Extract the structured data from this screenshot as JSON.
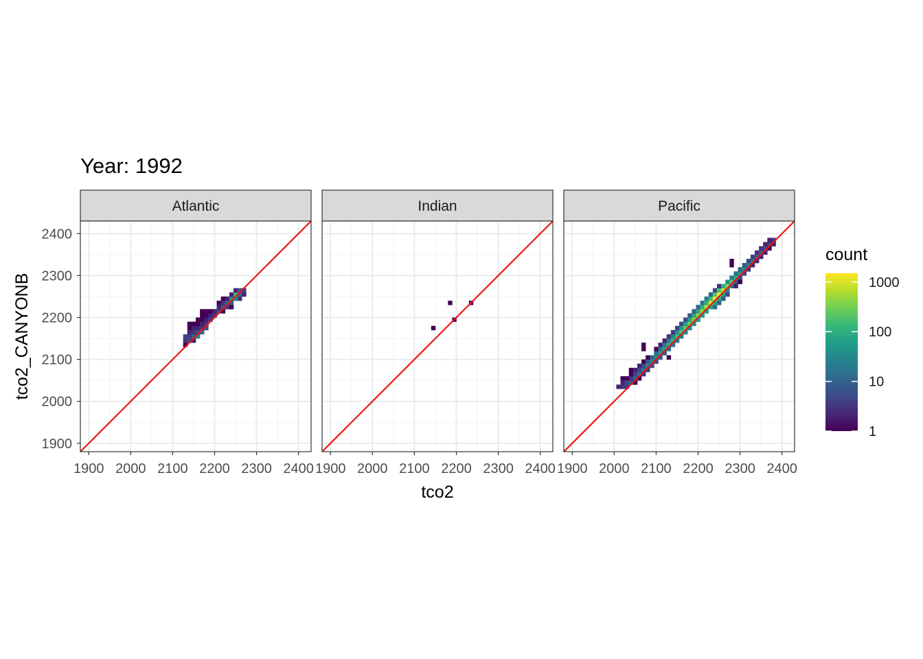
{
  "chart_data": {
    "type": "heatmap",
    "title": "Year: 1992",
    "xlabel": "tco2",
    "ylabel": "tco2_CANYONB",
    "xlim": [
      1880,
      2430
    ],
    "ylim": [
      1880,
      2430
    ],
    "x_ticks": [
      "1900",
      "2000",
      "2100",
      "2200",
      "2300",
      "2400"
    ],
    "y_ticks": [
      "1900",
      "2000",
      "2100",
      "2200",
      "2300",
      "2400"
    ],
    "bin_width": 10,
    "grid": true,
    "reference_line": {
      "slope": 1,
      "intercept": 0,
      "color": "#ee1111"
    },
    "legend": {
      "title": "count",
      "scale": "log10",
      "labels": [
        "1000",
        "100",
        "10",
        "1"
      ],
      "range": [
        1,
        1500
      ],
      "placement": "right"
    },
    "panels": [
      {
        "name": "Atlantic",
        "cells": [
          [
            2130,
            2135,
            1
          ],
          [
            2130,
            2145,
            3
          ],
          [
            2130,
            2155,
            5
          ],
          [
            2140,
            2145,
            6
          ],
          [
            2140,
            2155,
            4
          ],
          [
            2140,
            2165,
            2
          ],
          [
            2140,
            2175,
            1
          ],
          [
            2140,
            2185,
            1
          ],
          [
            2150,
            2145,
            2
          ],
          [
            2150,
            2155,
            10
          ],
          [
            2150,
            2165,
            3
          ],
          [
            2150,
            2175,
            2
          ],
          [
            2150,
            2185,
            1
          ],
          [
            2160,
            2155,
            30
          ],
          [
            2160,
            2165,
            5
          ],
          [
            2160,
            2175,
            2
          ],
          [
            2160,
            2185,
            1
          ],
          [
            2160,
            2195,
            1
          ],
          [
            2170,
            2165,
            15
          ],
          [
            2170,
            2175,
            3
          ],
          [
            2170,
            2185,
            2
          ],
          [
            2170,
            2195,
            1
          ],
          [
            2170,
            2205,
            1
          ],
          [
            2170,
            2215,
            1
          ],
          [
            2180,
            2175,
            6
          ],
          [
            2180,
            2185,
            3
          ],
          [
            2180,
            2195,
            2
          ],
          [
            2180,
            2205,
            1
          ],
          [
            2180,
            2215,
            1
          ],
          [
            2190,
            2195,
            4
          ],
          [
            2190,
            2205,
            2
          ],
          [
            2190,
            2215,
            1
          ],
          [
            2200,
            2205,
            3
          ],
          [
            2200,
            2215,
            2
          ],
          [
            2210,
            2215,
            5
          ],
          [
            2210,
            2225,
            2
          ],
          [
            2210,
            2235,
            1
          ],
          [
            2220,
            2225,
            8
          ],
          [
            2220,
            2235,
            3
          ],
          [
            2220,
            2245,
            1
          ],
          [
            2220,
            2215,
            1
          ],
          [
            2230,
            2235,
            12
          ],
          [
            2230,
            2225,
            3
          ],
          [
            2230,
            2245,
            2
          ],
          [
            2240,
            2245,
            40
          ],
          [
            2240,
            2235,
            8
          ],
          [
            2240,
            2255,
            2
          ],
          [
            2240,
            2225,
            1
          ],
          [
            2250,
            2255,
            150
          ],
          [
            2250,
            2245,
            30
          ],
          [
            2250,
            2265,
            2
          ],
          [
            2260,
            2265,
            8
          ],
          [
            2260,
            2255,
            12
          ],
          [
            2260,
            2245,
            3
          ],
          [
            2270,
            2265,
            4
          ],
          [
            2270,
            2255,
            2
          ]
        ]
      },
      {
        "name": "Indian",
        "cells": [
          [
            2145,
            2175,
            1
          ],
          [
            2185,
            2235,
            1
          ],
          [
            2195,
            2195,
            1
          ],
          [
            2235,
            2235,
            1
          ]
        ]
      },
      {
        "name": "Pacific",
        "cells": [
          [
            2010,
            2035,
            2
          ],
          [
            2020,
            2035,
            3
          ],
          [
            2020,
            2045,
            2
          ],
          [
            2020,
            2055,
            1
          ],
          [
            2030,
            2035,
            4
          ],
          [
            2030,
            2045,
            6
          ],
          [
            2030,
            2055,
            1
          ],
          [
            2040,
            2045,
            8
          ],
          [
            2040,
            2055,
            3
          ],
          [
            2040,
            2065,
            1
          ],
          [
            2040,
            2075,
            1
          ],
          [
            2050,
            2055,
            12
          ],
          [
            2050,
            2065,
            4
          ],
          [
            2050,
            2075,
            2
          ],
          [
            2050,
            2045,
            1
          ],
          [
            2060,
            2065,
            15
          ],
          [
            2060,
            2075,
            5
          ],
          [
            2060,
            2085,
            2
          ],
          [
            2060,
            2055,
            1
          ],
          [
            2070,
            2075,
            20
          ],
          [
            2070,
            2085,
            6
          ],
          [
            2070,
            2065,
            3
          ],
          [
            2070,
            2095,
            1
          ],
          [
            2070,
            2125,
            1
          ],
          [
            2070,
            2135,
            1
          ],
          [
            2080,
            2085,
            25
          ],
          [
            2080,
            2095,
            8
          ],
          [
            2080,
            2075,
            4
          ],
          [
            2080,
            2105,
            1
          ],
          [
            2090,
            2095,
            30
          ],
          [
            2090,
            2105,
            10
          ],
          [
            2090,
            2085,
            5
          ],
          [
            2100,
            2105,
            40
          ],
          [
            2100,
            2115,
            12
          ],
          [
            2100,
            2095,
            6
          ],
          [
            2100,
            2125,
            1
          ],
          [
            2110,
            2115,
            50
          ],
          [
            2110,
            2125,
            15
          ],
          [
            2110,
            2105,
            8
          ],
          [
            2110,
            2135,
            2
          ],
          [
            2120,
            2125,
            80
          ],
          [
            2120,
            2135,
            20
          ],
          [
            2120,
            2115,
            10
          ],
          [
            2120,
            2145,
            2
          ],
          [
            2130,
            2135,
            100
          ],
          [
            2130,
            2145,
            25
          ],
          [
            2130,
            2125,
            12
          ],
          [
            2130,
            2105,
            1
          ],
          [
            2130,
            2155,
            3
          ],
          [
            2140,
            2145,
            130
          ],
          [
            2140,
            2155,
            30
          ],
          [
            2140,
            2135,
            15
          ],
          [
            2140,
            2165,
            3
          ],
          [
            2150,
            2155,
            160
          ],
          [
            2150,
            2165,
            40
          ],
          [
            2150,
            2145,
            20
          ],
          [
            2150,
            2175,
            4
          ],
          [
            2160,
            2165,
            200
          ],
          [
            2160,
            2175,
            50
          ],
          [
            2160,
            2155,
            25
          ],
          [
            2160,
            2185,
            5
          ],
          [
            2170,
            2175,
            250
          ],
          [
            2170,
            2185,
            60
          ],
          [
            2170,
            2165,
            30
          ],
          [
            2170,
            2195,
            6
          ],
          [
            2180,
            2185,
            300
          ],
          [
            2180,
            2195,
            70
          ],
          [
            2180,
            2175,
            35
          ],
          [
            2180,
            2205,
            8
          ],
          [
            2190,
            2195,
            350
          ],
          [
            2190,
            2205,
            80
          ],
          [
            2190,
            2185,
            40
          ],
          [
            2190,
            2215,
            10
          ],
          [
            2200,
            2205,
            400
          ],
          [
            2200,
            2215,
            90
          ],
          [
            2200,
            2195,
            45
          ],
          [
            2200,
            2225,
            12
          ],
          [
            2210,
            2215,
            500
          ],
          [
            2210,
            2225,
            100
          ],
          [
            2210,
            2205,
            50
          ],
          [
            2210,
            2235,
            15
          ],
          [
            2220,
            2225,
            700
          ],
          [
            2220,
            2235,
            120
          ],
          [
            2220,
            2215,
            60
          ],
          [
            2220,
            2245,
            20
          ],
          [
            2230,
            2235,
            900
          ],
          [
            2230,
            2245,
            150
          ],
          [
            2230,
            2225,
            70
          ],
          [
            2230,
            2255,
            10
          ],
          [
            2240,
            2245,
            1200
          ],
          [
            2240,
            2255,
            200
          ],
          [
            2240,
            2235,
            80
          ],
          [
            2240,
            2225,
            15
          ],
          [
            2240,
            2265,
            5
          ],
          [
            2250,
            2255,
            1400
          ],
          [
            2250,
            2265,
            180
          ],
          [
            2250,
            2245,
            90
          ],
          [
            2250,
            2235,
            10
          ],
          [
            2250,
            2275,
            3
          ],
          [
            2260,
            2265,
            800
          ],
          [
            2260,
            2275,
            100
          ],
          [
            2260,
            2255,
            60
          ],
          [
            2260,
            2245,
            8
          ],
          [
            2270,
            2275,
            400
          ],
          [
            2270,
            2285,
            40
          ],
          [
            2270,
            2265,
            30
          ],
          [
            2270,
            2255,
            5
          ],
          [
            2280,
            2285,
            200
          ],
          [
            2280,
            2295,
            20
          ],
          [
            2280,
            2275,
            15
          ],
          [
            2280,
            2335,
            1
          ],
          [
            2280,
            2325,
            1
          ],
          [
            2290,
            2295,
            100
          ],
          [
            2290,
            2305,
            15
          ],
          [
            2290,
            2285,
            8
          ],
          [
            2290,
            2275,
            2
          ],
          [
            2300,
            2305,
            60
          ],
          [
            2300,
            2315,
            10
          ],
          [
            2300,
            2295,
            5
          ],
          [
            2300,
            2285,
            1
          ],
          [
            2310,
            2315,
            40
          ],
          [
            2310,
            2325,
            8
          ],
          [
            2310,
            2305,
            4
          ],
          [
            2320,
            2325,
            25
          ],
          [
            2320,
            2335,
            5
          ],
          [
            2320,
            2315,
            3
          ],
          [
            2330,
            2335,
            15
          ],
          [
            2330,
            2345,
            4
          ],
          [
            2330,
            2325,
            2
          ],
          [
            2340,
            2345,
            10
          ],
          [
            2340,
            2355,
            3
          ],
          [
            2340,
            2335,
            2
          ],
          [
            2350,
            2355,
            8
          ],
          [
            2350,
            2365,
            3
          ],
          [
            2350,
            2345,
            2
          ],
          [
            2360,
            2365,
            5
          ],
          [
            2360,
            2375,
            2
          ],
          [
            2360,
            2355,
            2
          ],
          [
            2370,
            2375,
            4
          ],
          [
            2370,
            2385,
            2
          ],
          [
            2370,
            2365,
            1
          ],
          [
            2380,
            2385,
            3
          ],
          [
            2380,
            2375,
            2
          ]
        ]
      }
    ]
  }
}
